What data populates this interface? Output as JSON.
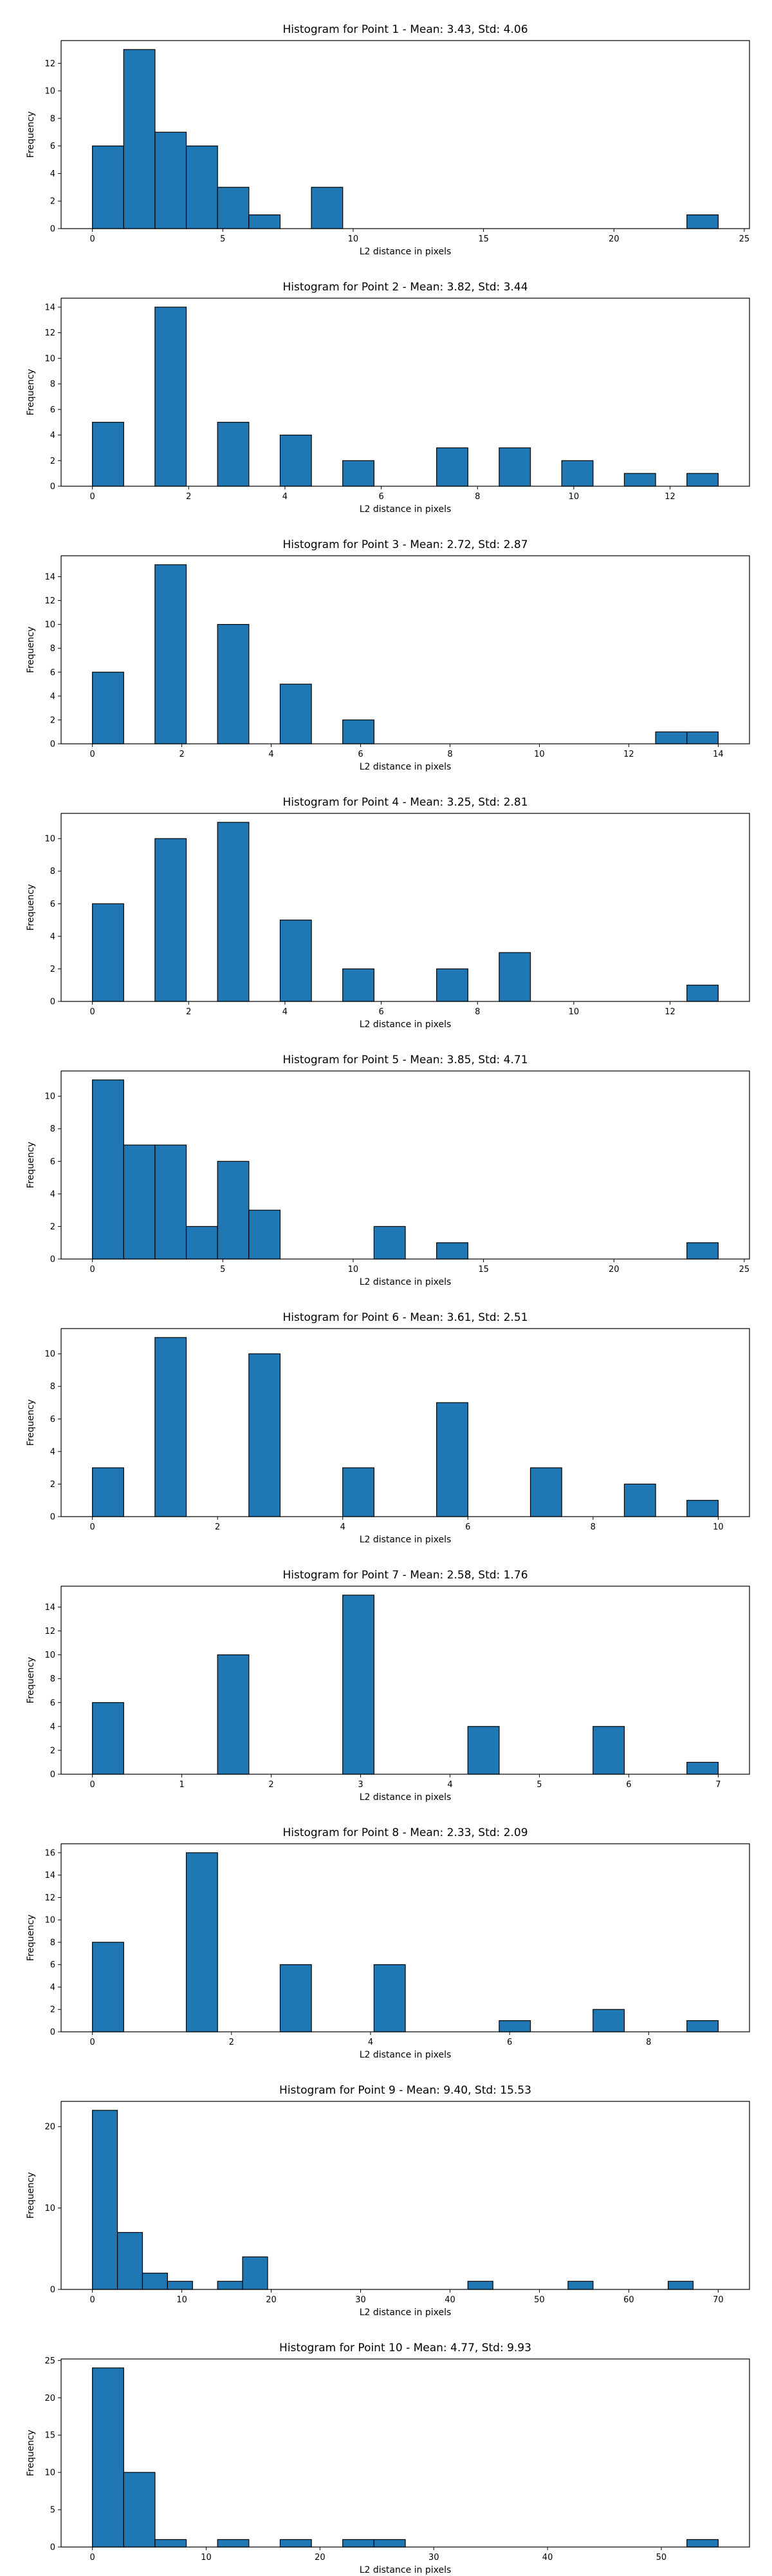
{
  "figure_title": "",
  "chart_data": [
    {
      "type": "bar",
      "title": "Histogram for Point 1 - Mean: 3.43, Std: 4.06",
      "xlabel": "L2 distance in pixels",
      "ylabel": "Frequency",
      "xlim": [
        -1.2,
        25.2
      ],
      "ylim": [
        0,
        13.65
      ],
      "xticks": [
        0,
        5,
        10,
        15,
        20,
        25
      ],
      "yticks": [
        0,
        2,
        4,
        6,
        8,
        10,
        12
      ],
      "grid": false,
      "bins": [
        {
          "x0": 0.0,
          "x1": 1.2,
          "count": 6
        },
        {
          "x0": 1.2,
          "x1": 2.4,
          "count": 13
        },
        {
          "x0": 2.4,
          "x1": 3.6,
          "count": 7
        },
        {
          "x0": 3.6,
          "x1": 4.8,
          "count": 6
        },
        {
          "x0": 4.8,
          "x1": 6.0,
          "count": 3
        },
        {
          "x0": 6.0,
          "x1": 7.2,
          "count": 1
        },
        {
          "x0": 8.4,
          "x1": 9.6,
          "count": 3
        },
        {
          "x0": 22.8,
          "x1": 24.0,
          "count": 1
        }
      ]
    },
    {
      "type": "bar",
      "title": "Histogram for Point 2 - Mean: 3.82, Std: 3.44",
      "xlabel": "L2 distance in pixels",
      "ylabel": "Frequency",
      "xlim": [
        -0.65,
        13.65
      ],
      "ylim": [
        0,
        14.7
      ],
      "xticks": [
        0,
        2,
        4,
        6,
        8,
        10,
        12
      ],
      "yticks": [
        0,
        2,
        4,
        6,
        8,
        10,
        12,
        14
      ],
      "grid": false,
      "bins": [
        {
          "x0": 0.0,
          "x1": 0.65,
          "count": 5
        },
        {
          "x0": 1.3,
          "x1": 1.95,
          "count": 14
        },
        {
          "x0": 2.6,
          "x1": 3.25,
          "count": 5
        },
        {
          "x0": 3.9,
          "x1": 4.55,
          "count": 4
        },
        {
          "x0": 5.2,
          "x1": 5.85,
          "count": 2
        },
        {
          "x0": 7.15,
          "x1": 7.8,
          "count": 3
        },
        {
          "x0": 8.45,
          "x1": 9.1,
          "count": 3
        },
        {
          "x0": 9.75,
          "x1": 10.4,
          "count": 2
        },
        {
          "x0": 11.05,
          "x1": 11.7,
          "count": 1
        },
        {
          "x0": 12.35,
          "x1": 13.0,
          "count": 1
        }
      ]
    },
    {
      "type": "bar",
      "title": "Histogram for Point 3 - Mean: 2.72, Std: 2.87",
      "xlabel": "L2 distance in pixels",
      "ylabel": "Frequency",
      "xlim": [
        -0.7,
        14.7
      ],
      "ylim": [
        0,
        15.75
      ],
      "xticks": [
        0,
        2,
        4,
        6,
        8,
        10,
        12,
        14
      ],
      "yticks": [
        0,
        2,
        4,
        6,
        8,
        10,
        12,
        14
      ],
      "grid": false,
      "bins": [
        {
          "x0": 0.0,
          "x1": 0.7,
          "count": 6
        },
        {
          "x0": 1.4,
          "x1": 2.1,
          "count": 15
        },
        {
          "x0": 2.8,
          "x1": 3.5,
          "count": 10
        },
        {
          "x0": 4.2,
          "x1": 4.9,
          "count": 5
        },
        {
          "x0": 5.6,
          "x1": 6.3,
          "count": 2
        },
        {
          "x0": 12.6,
          "x1": 13.3,
          "count": 1
        },
        {
          "x0": 13.3,
          "x1": 14.0,
          "count": 1
        }
      ]
    },
    {
      "type": "bar",
      "title": "Histogram for Point 4 - Mean: 3.25, Std: 2.81",
      "xlabel": "L2 distance in pixels",
      "ylabel": "Frequency",
      "xlim": [
        -0.65,
        13.65
      ],
      "ylim": [
        0,
        11.55
      ],
      "xticks": [
        0,
        2,
        4,
        6,
        8,
        10,
        12
      ],
      "yticks": [
        0,
        2,
        4,
        6,
        8,
        10
      ],
      "grid": false,
      "bins": [
        {
          "x0": 0.0,
          "x1": 0.65,
          "count": 6
        },
        {
          "x0": 1.3,
          "x1": 1.95,
          "count": 10
        },
        {
          "x0": 2.6,
          "x1": 3.25,
          "count": 11
        },
        {
          "x0": 3.9,
          "x1": 4.55,
          "count": 5
        },
        {
          "x0": 5.2,
          "x1": 5.85,
          "count": 2
        },
        {
          "x0": 7.15,
          "x1": 7.8,
          "count": 2
        },
        {
          "x0": 8.45,
          "x1": 9.1,
          "count": 3
        },
        {
          "x0": 12.35,
          "x1": 13.0,
          "count": 1
        }
      ]
    },
    {
      "type": "bar",
      "title": "Histogram for Point 5 - Mean: 3.85, Std: 4.71",
      "xlabel": "L2 distance in pixels",
      "ylabel": "Frequency",
      "xlim": [
        -1.2,
        25.2
      ],
      "ylim": [
        0,
        11.55
      ],
      "xticks": [
        0,
        5,
        10,
        15,
        20,
        25
      ],
      "yticks": [
        0,
        2,
        4,
        6,
        8,
        10
      ],
      "grid": false,
      "bins": [
        {
          "x0": 0.0,
          "x1": 1.2,
          "count": 11
        },
        {
          "x0": 1.2,
          "x1": 2.4,
          "count": 7
        },
        {
          "x0": 2.4,
          "x1": 3.6,
          "count": 7
        },
        {
          "x0": 3.6,
          "x1": 4.8,
          "count": 2
        },
        {
          "x0": 4.8,
          "x1": 6.0,
          "count": 6
        },
        {
          "x0": 6.0,
          "x1": 7.2,
          "count": 3
        },
        {
          "x0": 10.8,
          "x1": 12.0,
          "count": 2
        },
        {
          "x0": 13.2,
          "x1": 14.4,
          "count": 1
        },
        {
          "x0": 22.8,
          "x1": 24.0,
          "count": 1
        }
      ]
    },
    {
      "type": "bar",
      "title": "Histogram for Point 6 - Mean: 3.61, Std: 2.51",
      "xlabel": "L2 distance in pixels",
      "ylabel": "Frequency",
      "xlim": [
        -0.5,
        10.5
      ],
      "ylim": [
        0,
        11.55
      ],
      "xticks": [
        0,
        2,
        4,
        6,
        8,
        10
      ],
      "yticks": [
        0,
        2,
        4,
        6,
        8,
        10
      ],
      "grid": false,
      "bins": [
        {
          "x0": 0.0,
          "x1": 0.5,
          "count": 3
        },
        {
          "x0": 1.0,
          "x1": 1.5,
          "count": 11
        },
        {
          "x0": 2.5,
          "x1": 3.0,
          "count": 10
        },
        {
          "x0": 4.0,
          "x1": 4.5,
          "count": 3
        },
        {
          "x0": 5.5,
          "x1": 6.0,
          "count": 7
        },
        {
          "x0": 7.0,
          "x1": 7.5,
          "count": 3
        },
        {
          "x0": 8.5,
          "x1": 9.0,
          "count": 2
        },
        {
          "x0": 9.5,
          "x1": 10.0,
          "count": 1
        }
      ]
    },
    {
      "type": "bar",
      "title": "Histogram for Point 7 - Mean: 2.58, Std: 1.76",
      "xlabel": "L2 distance in pixels",
      "ylabel": "Frequency",
      "xlim": [
        -0.35,
        7.35
      ],
      "ylim": [
        0,
        15.75
      ],
      "xticks": [
        0,
        1,
        2,
        3,
        4,
        5,
        6,
        7
      ],
      "yticks": [
        0,
        2,
        4,
        6,
        8,
        10,
        12,
        14
      ],
      "grid": false,
      "bins": [
        {
          "x0": 0.0,
          "x1": 0.35,
          "count": 6
        },
        {
          "x0": 1.4,
          "x1": 1.75,
          "count": 10
        },
        {
          "x0": 2.8,
          "x1": 3.15,
          "count": 15
        },
        {
          "x0": 4.2,
          "x1": 4.55,
          "count": 4
        },
        {
          "x0": 5.6,
          "x1": 5.95,
          "count": 4
        },
        {
          "x0": 6.65,
          "x1": 7.0,
          "count": 1
        }
      ]
    },
    {
      "type": "bar",
      "title": "Histogram for Point 8 - Mean: 2.33, Std: 2.09",
      "xlabel": "L2 distance in pixels",
      "ylabel": "Frequency",
      "xlim": [
        -0.45,
        9.45
      ],
      "ylim": [
        0,
        16.8
      ],
      "xticks": [
        0,
        2,
        4,
        6,
        8
      ],
      "yticks": [
        0,
        2,
        4,
        6,
        8,
        10,
        12,
        14,
        16
      ],
      "grid": false,
      "bins": [
        {
          "x0": 0.0,
          "x1": 0.45,
          "count": 8
        },
        {
          "x0": 1.35,
          "x1": 1.8,
          "count": 16
        },
        {
          "x0": 2.7,
          "x1": 3.15,
          "count": 6
        },
        {
          "x0": 4.05,
          "x1": 4.5,
          "count": 6
        },
        {
          "x0": 5.85,
          "x1": 6.3,
          "count": 1
        },
        {
          "x0": 7.2,
          "x1": 7.65,
          "count": 2
        },
        {
          "x0": 8.55,
          "x1": 9.0,
          "count": 1
        }
      ]
    },
    {
      "type": "bar",
      "title": "Histogram for Point 9 - Mean: 9.40, Std: 15.53",
      "xlabel": "L2 distance in pixels",
      "ylabel": "Frequency",
      "xlim": [
        -3.5,
        73.5
      ],
      "ylim": [
        0,
        23.1
      ],
      "xticks": [
        0,
        10,
        20,
        30,
        40,
        50,
        60,
        70
      ],
      "yticks": [
        0,
        10,
        20
      ],
      "grid": false,
      "bins": [
        {
          "x0": 0.0,
          "x1": 2.8,
          "count": 22
        },
        {
          "x0": 2.8,
          "x1": 5.6,
          "count": 7
        },
        {
          "x0": 5.6,
          "x1": 8.4,
          "count": 2
        },
        {
          "x0": 8.4,
          "x1": 11.2,
          "count": 1
        },
        {
          "x0": 14.0,
          "x1": 16.8,
          "count": 1
        },
        {
          "x0": 16.8,
          "x1": 19.6,
          "count": 4
        },
        {
          "x0": 42.0,
          "x1": 44.8,
          "count": 1
        },
        {
          "x0": 53.2,
          "x1": 56.0,
          "count": 1
        },
        {
          "x0": 64.4,
          "x1": 67.2,
          "count": 1
        }
      ]
    },
    {
      "type": "bar",
      "title": "Histogram for Point 10 - Mean: 4.77, Std: 9.93",
      "xlabel": "L2 distance in pixels",
      "ylabel": "Frequency",
      "xlim": [
        -2.75,
        57.75
      ],
      "ylim": [
        0,
        25.2
      ],
      "xticks": [
        0,
        10,
        20,
        30,
        40,
        50
      ],
      "yticks": [
        0,
        5,
        10,
        15,
        20,
        25
      ],
      "grid": false,
      "bins": [
        {
          "x0": 0.0,
          "x1": 2.75,
          "count": 24
        },
        {
          "x0": 2.75,
          "x1": 5.5,
          "count": 10
        },
        {
          "x0": 5.5,
          "x1": 8.25,
          "count": 1
        },
        {
          "x0": 11.0,
          "x1": 13.75,
          "count": 1
        },
        {
          "x0": 16.5,
          "x1": 19.25,
          "count": 1
        },
        {
          "x0": 22.0,
          "x1": 24.75,
          "count": 1
        },
        {
          "x0": 24.75,
          "x1": 27.5,
          "count": 1
        },
        {
          "x0": 52.25,
          "x1": 55.0,
          "count": 1
        }
      ]
    }
  ]
}
